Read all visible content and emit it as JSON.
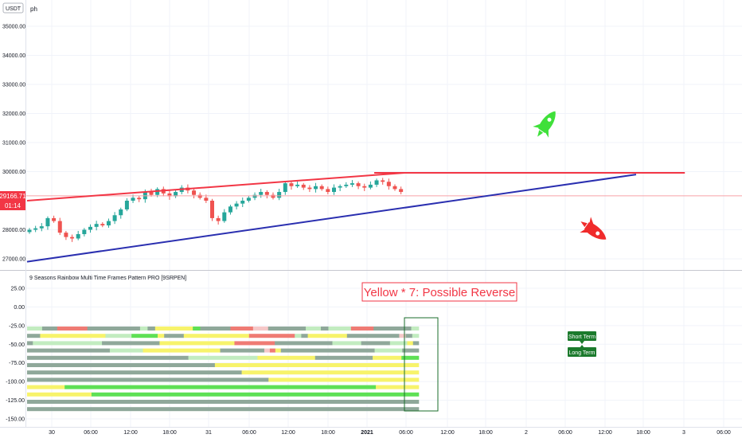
{
  "header": {
    "currency_badge": "USDT",
    "symbol_fragment": "ph"
  },
  "price_badge": {
    "value": "29166.71",
    "countdown": "01:14",
    "color": "#f23645"
  },
  "indicator": {
    "title": "9 Seasons Rainbow Multi Time Frames Pattern PRO [9SRPEN]",
    "yticks": [
      "25.00",
      "0.00",
      "-25.00",
      "-50.00",
      "-75.00",
      "-100.00",
      "-125.00",
      "-150.00"
    ]
  },
  "annotation": {
    "text": "Yellow * 7: Possible Reverse",
    "color": "#f23645"
  },
  "labels": {
    "short_term": "Short Term",
    "long_term": "Long Term",
    "color": "#1b7a2c"
  },
  "icons": {
    "up": "rocket-up-icon",
    "down": "rocket-down-icon"
  },
  "chart_data": {
    "type": "candlestick",
    "price_axis": {
      "ticks": [
        35000,
        34000,
        33000,
        32000,
        31000,
        30000,
        28000,
        27000
      ],
      "range": [
        26800,
        35300
      ]
    },
    "time_axis_ticks": [
      "30",
      "06:00",
      "12:00",
      "18:00",
      "31",
      "06:00",
      "12:00",
      "18:00",
      "2021",
      "06:00",
      "12:00",
      "18:00",
      "2",
      "06:00",
      "12:00",
      "18:00",
      "3",
      "06:00"
    ],
    "last_price": 29166.71,
    "close_series": [
      28000,
      28050,
      28120,
      28400,
      28300,
      27900,
      27750,
      27700,
      27850,
      28000,
      28100,
      28200,
      28150,
      28300,
      28500,
      28700,
      29000,
      29100,
      29050,
      29300,
      29200,
      29400,
      29250,
      29150,
      29300,
      29450,
      29350,
      29200,
      29100,
      29000,
      28400,
      28300,
      28600,
      28800,
      28900,
      29000,
      29100,
      29200,
      29300,
      29200,
      29100,
      29300,
      29600,
      29500,
      29550,
      29450,
      29400,
      29500,
      29400,
      29300,
      29450,
      29500,
      29550,
      29600,
      29500,
      29450,
      29550,
      29700,
      29650,
      29500,
      29400,
      29300
    ],
    "trendlines": [
      {
        "color": "#f23645",
        "from": {
          "index": 0,
          "price": 29000
        },
        "to": {
          "index": 62,
          "price": 29960
        }
      },
      {
        "color": "#f23645",
        "from": {
          "index": 57,
          "price": 29960
        },
        "to": {
          "index": 108,
          "price": 29960
        }
      },
      {
        "color": "#2a2fb0",
        "from": {
          "index": 0,
          "price": 26900
        },
        "to": {
          "index": 100,
          "price": 29900
        }
      }
    ],
    "rainbow_palette": {
      "g": "#8fa89a",
      "lg": "#c2ecc0",
      "bg": "#5ee055",
      "y": "#f7f36b",
      "p": "#f6c8c8",
      "r": "#ef7b74",
      "o": "#f2b05a"
    },
    "rainbow_rows": [
      [
        [
          "lg",
          2
        ],
        [
          "g",
          2
        ],
        [
          "r",
          4
        ],
        [
          "g",
          7
        ],
        [
          "lg",
          1
        ],
        [
          "g",
          1
        ],
        [
          "y",
          5
        ],
        [
          "bg",
          1
        ],
        [
          "g",
          4
        ],
        [
          "r",
          3
        ],
        [
          "p",
          2
        ],
        [
          "g",
          5
        ],
        [
          "lg",
          2
        ],
        [
          "g",
          1
        ],
        [
          "lg",
          3
        ],
        [
          "r",
          3
        ],
        [
          "g",
          5
        ],
        [
          "lg",
          1
        ]
      ],
      [
        [
          "g",
          2
        ],
        [
          "y",
          10
        ],
        [
          "lg",
          4
        ],
        [
          "bg",
          4
        ],
        [
          "y",
          1
        ],
        [
          "g",
          3
        ],
        [
          "y",
          10
        ],
        [
          "r",
          7
        ],
        [
          "lg",
          1
        ],
        [
          "g",
          1
        ],
        [
          "y",
          6
        ],
        [
          "g",
          8
        ],
        [
          "p",
          1
        ],
        [
          "g",
          1
        ],
        [
          "lg",
          1
        ]
      ],
      [
        [
          "g",
          1
        ],
        [
          "lg",
          12
        ],
        [
          "g",
          10
        ],
        [
          "y",
          13
        ],
        [
          "r",
          7
        ],
        [
          "g",
          10
        ],
        [
          "lg",
          5
        ],
        [
          "g",
          5
        ],
        [
          "lg",
          3
        ],
        [
          "y",
          1
        ],
        [
          "g",
          1
        ]
      ],
      [
        [
          "g",
          15
        ],
        [
          "lg",
          6
        ],
        [
          "y",
          14
        ],
        [
          "g",
          8
        ],
        [
          "p",
          1
        ],
        [
          "r",
          1
        ],
        [
          "y",
          1
        ],
        [
          "g",
          17
        ],
        [
          "lg",
          5
        ],
        [
          "g",
          3
        ]
      ],
      [
        [
          "g",
          28
        ],
        [
          "lg",
          12
        ],
        [
          "y",
          10
        ],
        [
          "g",
          10
        ],
        [
          "y",
          5
        ],
        [
          "bg",
          3
        ]
      ],
      [
        [
          "g",
          35
        ],
        [
          "y",
          38
        ]
      ],
      [
        [
          "g",
          40
        ],
        [
          "y",
          33
        ]
      ],
      [
        [
          "g",
          45
        ],
        [
          "y",
          28
        ]
      ],
      [
        [
          "y",
          7
        ],
        [
          "bg",
          58
        ],
        [
          "y",
          8
        ]
      ],
      [
        [
          "y",
          12
        ],
        [
          "bg",
          61
        ]
      ],
      [
        [
          "g",
          73
        ]
      ],
      [
        [
          "g",
          73
        ]
      ]
    ]
  }
}
